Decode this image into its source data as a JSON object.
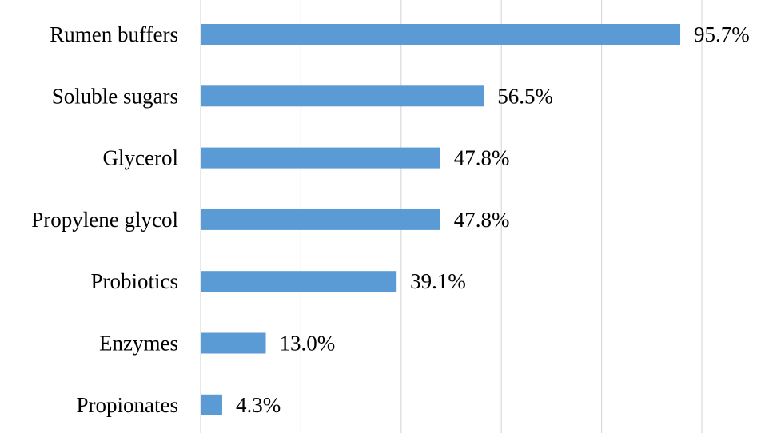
{
  "chart_data": {
    "type": "bar",
    "orientation": "horizontal",
    "categories": [
      "Rumen buffers",
      "Soluble sugars",
      "Glycerol",
      "Propylene glycol",
      "Probiotics",
      "Enzymes",
      "Propionates"
    ],
    "values": [
      95.7,
      56.5,
      47.8,
      47.8,
      39.1,
      13.0,
      4.3
    ],
    "data_labels": [
      "95.7%",
      "56.5%",
      "47.8%",
      "47.8%",
      "39.1%",
      "13.0%",
      "4.3%"
    ],
    "xlim": [
      0,
      100
    ],
    "x_gridlines_at": [
      0,
      20,
      40,
      60,
      80,
      100
    ],
    "grid": true,
    "bar_color": "#5b9bd5",
    "legend": "none"
  }
}
